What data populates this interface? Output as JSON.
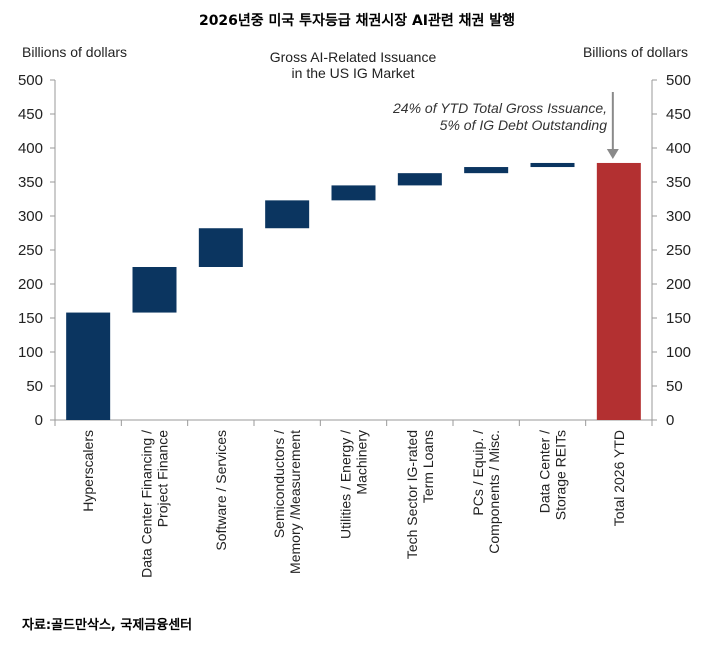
{
  "page_title": "2026년중 미국 투자등급 채권시장 AI관련 채권 발행",
  "source": "자료:골드만삭스, 국제금융센터",
  "chart_data": {
    "type": "bar",
    "subtype": "waterfall",
    "title_lines": [
      "Gross AI-Related Issuance",
      "in the US IG Market"
    ],
    "ylabel_left": "Billions of dollars",
    "ylabel_right": "Billions of dollars",
    "ylim": [
      0,
      500
    ],
    "yticks": [
      0,
      50,
      100,
      150,
      200,
      250,
      300,
      350,
      400,
      450,
      500
    ],
    "grid": false,
    "categories": [
      [
        "Hyperscalers"
      ],
      [
        "Data Center Financing /",
        "Project Finance"
      ],
      [
        "Software / Services"
      ],
      [
        "Semiconductors /",
        "Memory /Measurement"
      ],
      [
        "Utilities / Energy /",
        "Machinery"
      ],
      [
        "Tech Sector IG-rated",
        "Term Loans"
      ],
      [
        "PCs / Equip. /",
        "Components / Misc."
      ],
      [
        "Data Center /",
        "Storage REITs"
      ],
      [
        "Total 2026 YTD"
      ]
    ],
    "bars": [
      {
        "start": 0,
        "end": 158
      },
      {
        "start": 158,
        "end": 225
      },
      {
        "start": 225,
        "end": 282
      },
      {
        "start": 282,
        "end": 323
      },
      {
        "start": 323,
        "end": 345
      },
      {
        "start": 345,
        "end": 363
      },
      {
        "start": 363,
        "end": 372
      },
      {
        "start": 372,
        "end": 378
      },
      {
        "start": 0,
        "end": 378
      }
    ],
    "colors": {
      "increment": "#0b3560",
      "total": "#b33031"
    },
    "annotation": {
      "lines": [
        "24% of YTD Total Gross Issuance,",
        "5% of IG Debt Outstanding"
      ],
      "arrow_to_value": 378
    }
  }
}
